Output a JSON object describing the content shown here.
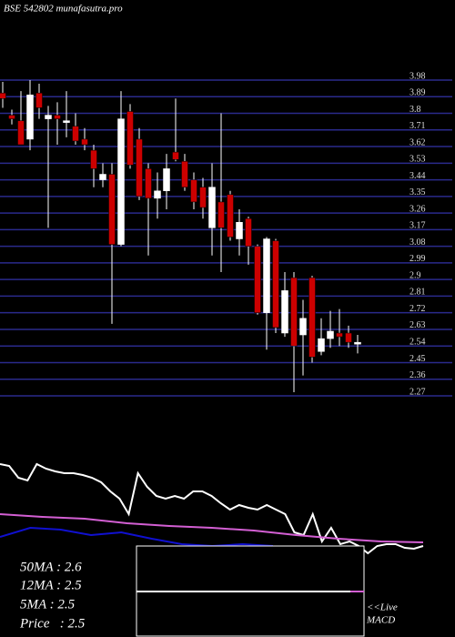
{
  "chart_data": {
    "type": "candlestick",
    "title": "BSE 542802 munafasutra.pro",
    "ylim": [
      2.27,
      3.98
    ],
    "yticks": [
      3.98,
      3.89,
      3.8,
      3.71,
      3.62,
      3.53,
      3.44,
      3.35,
      3.26,
      3.17,
      3.08,
      2.99,
      2.9,
      2.81,
      2.72,
      2.63,
      2.54,
      2.45,
      2.36,
      2.27
    ],
    "grid": true,
    "grid_color": "#2a2a8c",
    "up_color": "#ffffff",
    "down_color": "#cc0000",
    "candles": [
      {
        "open": 3.91,
        "high": 3.97,
        "low": 3.83,
        "close": 3.88
      },
      {
        "open": 3.79,
        "high": 3.82,
        "low": 3.74,
        "close": 3.77
      },
      {
        "open": 3.76,
        "high": 3.92,
        "low": 3.63,
        "close": 3.63
      },
      {
        "open": 3.66,
        "high": 3.98,
        "low": 3.6,
        "close": 3.9
      },
      {
        "open": 3.91,
        "high": 3.96,
        "low": 3.77,
        "close": 3.83
      },
      {
        "open": 3.77,
        "high": 3.84,
        "low": 3.18,
        "close": 3.79
      },
      {
        "open": 3.79,
        "high": 3.86,
        "low": 3.63,
        "close": 3.77
      },
      {
        "open": 3.75,
        "high": 3.92,
        "low": 3.67,
        "close": 3.76
      },
      {
        "open": 3.73,
        "high": 3.8,
        "low": 3.63,
        "close": 3.65
      },
      {
        "open": 3.66,
        "high": 3.72,
        "low": 3.6,
        "close": 3.63
      },
      {
        "open": 3.6,
        "high": 3.63,
        "low": 3.4,
        "close": 3.5
      },
      {
        "open": 3.44,
        "high": 3.53,
        "low": 3.4,
        "close": 3.47
      },
      {
        "open": 3.47,
        "high": 3.53,
        "low": 2.66,
        "close": 3.09
      },
      {
        "open": 3.09,
        "high": 3.92,
        "low": 3.08,
        "close": 3.77
      },
      {
        "open": 3.81,
        "high": 3.85,
        "low": 3.5,
        "close": 3.52
      },
      {
        "open": 3.66,
        "high": 3.72,
        "low": 3.33,
        "close": 3.35
      },
      {
        "open": 3.5,
        "high": 3.53,
        "low": 3.03,
        "close": 3.34
      },
      {
        "open": 3.34,
        "high": 3.48,
        "low": 3.23,
        "close": 3.38
      },
      {
        "open": 3.38,
        "high": 3.58,
        "low": 3.28,
        "close": 3.5
      },
      {
        "open": 3.59,
        "high": 3.88,
        "low": 3.54,
        "close": 3.55
      },
      {
        "open": 3.54,
        "high": 3.58,
        "low": 3.38,
        "close": 3.4
      },
      {
        "open": 3.44,
        "high": 3.48,
        "low": 3.28,
        "close": 3.32
      },
      {
        "open": 3.4,
        "high": 3.45,
        "low": 3.23,
        "close": 3.29
      },
      {
        "open": 3.18,
        "high": 3.53,
        "low": 3.03,
        "close": 3.4
      },
      {
        "open": 3.32,
        "high": 3.8,
        "low": 2.94,
        "close": 3.18
      },
      {
        "open": 3.36,
        "high": 3.38,
        "low": 3.11,
        "close": 3.13
      },
      {
        "open": 3.12,
        "high": 3.28,
        "low": 3.03,
        "close": 3.21
      },
      {
        "open": 3.23,
        "high": 3.24,
        "low": 2.98,
        "close": 3.08
      },
      {
        "open": 3.08,
        "high": 3.09,
        "low": 2.71,
        "close": 2.72
      },
      {
        "open": 2.72,
        "high": 3.13,
        "low": 2.52,
        "close": 3.12
      },
      {
        "open": 3.11,
        "high": 3.12,
        "low": 2.61,
        "close": 2.64
      },
      {
        "open": 2.61,
        "high": 2.94,
        "low": 2.59,
        "close": 2.84
      },
      {
        "open": 2.91,
        "high": 2.94,
        "low": 2.29,
        "close": 2.54
      },
      {
        "open": 2.6,
        "high": 2.79,
        "low": 2.38,
        "close": 2.69
      },
      {
        "open": 2.91,
        "high": 2.92,
        "low": 2.45,
        "close": 2.48
      },
      {
        "open": 2.51,
        "high": 2.69,
        "low": 2.49,
        "close": 2.58
      },
      {
        "open": 2.58,
        "high": 2.73,
        "low": 2.53,
        "close": 2.62
      },
      {
        "open": 2.61,
        "high": 2.74,
        "low": 2.54,
        "close": 2.59
      },
      {
        "open": 2.61,
        "high": 2.65,
        "low": 2.53,
        "close": 2.56
      },
      {
        "open": 2.55,
        "high": 2.6,
        "low": 2.5,
        "close": 2.56
      }
    ],
    "indicator_ylim": [
      0,
      110
    ],
    "indicator_lines": [
      {
        "color": "#ffffff",
        "values": [
          100,
          98,
          85,
          82,
          100,
          95,
          92,
          90,
          90,
          88,
          85,
          80,
          70,
          62,
          45,
          90,
          75,
          65,
          62,
          65,
          62,
          70,
          70,
          65,
          57,
          50,
          55,
          52,
          50,
          55,
          50,
          45,
          25,
          22,
          45,
          15,
          30,
          12,
          15,
          10,
          2,
          10,
          12,
          12,
          8,
          7,
          10
        ]
      },
      {
        "color": "#d35fd3",
        "values": [
          45,
          42,
          40,
          35,
          32,
          30,
          27,
          22,
          18,
          15,
          14
        ]
      },
      {
        "color": "#1010d0",
        "values": [
          20,
          30,
          28,
          22,
          25,
          18,
          12,
          10,
          12,
          10
        ]
      }
    ],
    "labels": [
      "50MA : 2.6",
      "12MA : 2.5",
      "5MA : 2.5",
      "Price   : 2.5"
    ],
    "macd_label": [
      "<<Live",
      "MACD"
    ]
  }
}
